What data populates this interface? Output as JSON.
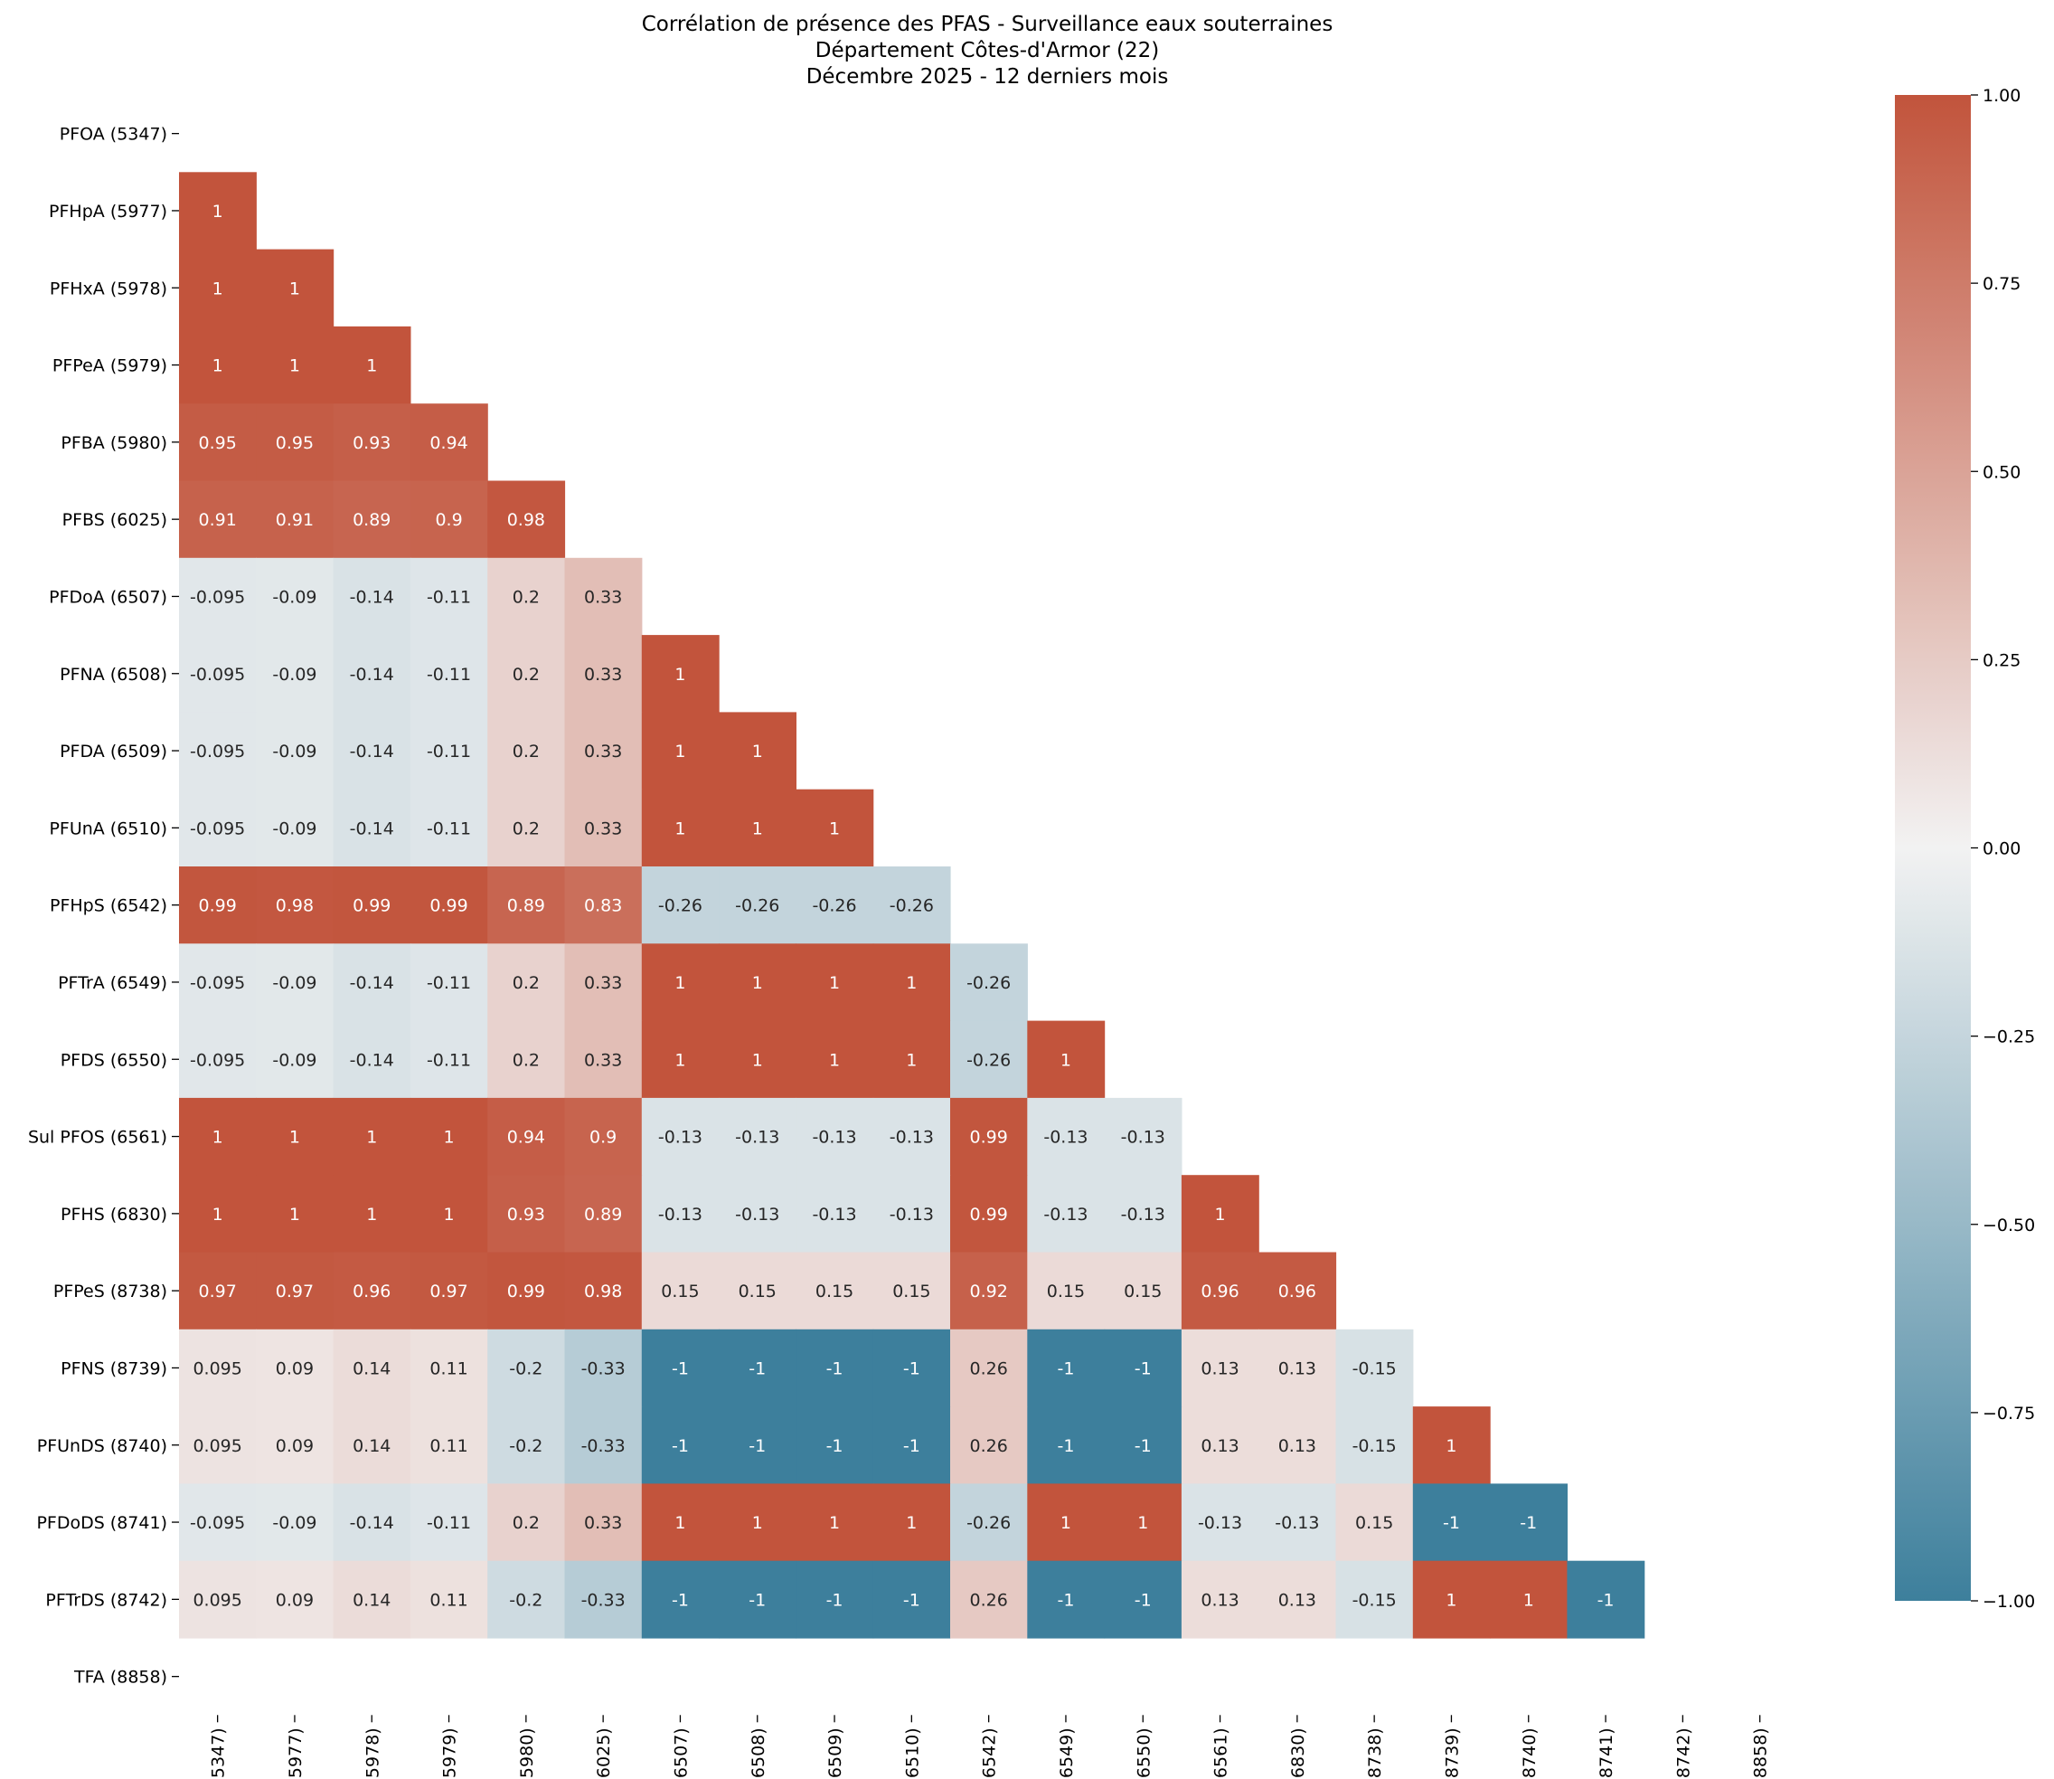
{
  "chart_data": {
    "type": "heatmap",
    "title": "Corrélation de présence des PFAS - Surveillance eaux souterraines",
    "subtitle": "Département Côtes-d'Armor (22)",
    "period": "Décembre 2025 - 12 derniers mois",
    "xlabel": "",
    "ylabel": "",
    "mask": "upper-triangle-and-diagonal",
    "labels": [
      "PFOA (5347)",
      "PFHpA (5977)",
      "PFHxA (5978)",
      "PFPeA (5979)",
      "PFBA (5980)",
      "PFBS (6025)",
      "PFDoA (6507)",
      "PFNA (6508)",
      "PFDA (6509)",
      "PFUnA (6510)",
      "PFHpS (6542)",
      "PFTrA (6549)",
      "PFDS (6550)",
      "Sul PFOS (6561)",
      "PFHS (6830)",
      "PFPeS (8738)",
      "PFNS (8739)",
      "PFUnDS (8740)",
      "PFDoDS (8741)",
      "PFTrDS (8742)",
      "TFA (8858)"
    ],
    "rows": [
      [],
      [
        "1"
      ],
      [
        "1",
        "1"
      ],
      [
        "1",
        "1",
        "1"
      ],
      [
        "0.95",
        "0.95",
        "0.93",
        "0.94"
      ],
      [
        "0.91",
        "0.91",
        "0.89",
        "0.9",
        "0.98"
      ],
      [
        "-0.095",
        "-0.09",
        "-0.14",
        "-0.11",
        "0.2",
        "0.33"
      ],
      [
        "-0.095",
        "-0.09",
        "-0.14",
        "-0.11",
        "0.2",
        "0.33",
        "1"
      ],
      [
        "-0.095",
        "-0.09",
        "-0.14",
        "-0.11",
        "0.2",
        "0.33",
        "1",
        "1"
      ],
      [
        "-0.095",
        "-0.09",
        "-0.14",
        "-0.11",
        "0.2",
        "0.33",
        "1",
        "1",
        "1"
      ],
      [
        "0.99",
        "0.98",
        "0.99",
        "0.99",
        "0.89",
        "0.83",
        "-0.26",
        "-0.26",
        "-0.26",
        "-0.26"
      ],
      [
        "-0.095",
        "-0.09",
        "-0.14",
        "-0.11",
        "0.2",
        "0.33",
        "1",
        "1",
        "1",
        "1",
        "-0.26"
      ],
      [
        "-0.095",
        "-0.09",
        "-0.14",
        "-0.11",
        "0.2",
        "0.33",
        "1",
        "1",
        "1",
        "1",
        "-0.26",
        "1"
      ],
      [
        "1",
        "1",
        "1",
        "1",
        "0.94",
        "0.9",
        "-0.13",
        "-0.13",
        "-0.13",
        "-0.13",
        "0.99",
        "-0.13",
        "-0.13"
      ],
      [
        "1",
        "1",
        "1",
        "1",
        "0.93",
        "0.89",
        "-0.13",
        "-0.13",
        "-0.13",
        "-0.13",
        "0.99",
        "-0.13",
        "-0.13",
        "1"
      ],
      [
        "0.97",
        "0.97",
        "0.96",
        "0.97",
        "0.99",
        "0.98",
        "0.15",
        "0.15",
        "0.15",
        "0.15",
        "0.92",
        "0.15",
        "0.15",
        "0.96",
        "0.96"
      ],
      [
        "0.095",
        "0.09",
        "0.14",
        "0.11",
        "-0.2",
        "-0.33",
        "-1",
        "-1",
        "-1",
        "-1",
        "0.26",
        "-1",
        "-1",
        "0.13",
        "0.13",
        "-0.15"
      ],
      [
        "0.095",
        "0.09",
        "0.14",
        "0.11",
        "-0.2",
        "-0.33",
        "-1",
        "-1",
        "-1",
        "-1",
        "0.26",
        "-1",
        "-1",
        "0.13",
        "0.13",
        "-0.15",
        "1"
      ],
      [
        "-0.095",
        "-0.09",
        "-0.14",
        "-0.11",
        "0.2",
        "0.33",
        "1",
        "1",
        "1",
        "1",
        "-0.26",
        "1",
        "1",
        "-0.13",
        "-0.13",
        "0.15",
        "-1",
        "-1"
      ],
      [
        "0.095",
        "0.09",
        "0.14",
        "0.11",
        "-0.2",
        "-0.33",
        "-1",
        "-1",
        "-1",
        "-1",
        "0.26",
        "-1",
        "-1",
        "0.13",
        "0.13",
        "-0.15",
        "1",
        "1",
        "-1"
      ],
      []
    ],
    "colorbar": {
      "range": [
        -1,
        1
      ],
      "ticks": [
        "1.00",
        "0.75",
        "0.50",
        "0.25",
        "0.00",
        "−0.25",
        "−0.50",
        "−0.75",
        "−1.00"
      ],
      "tick_values": [
        1,
        0.75,
        0.5,
        0.25,
        0,
        -0.25,
        -0.5,
        -0.75,
        -1
      ],
      "color_neg": "#3d7f9c",
      "color_mid": "#f2f2f2",
      "color_pos": "#c2543c"
    }
  }
}
